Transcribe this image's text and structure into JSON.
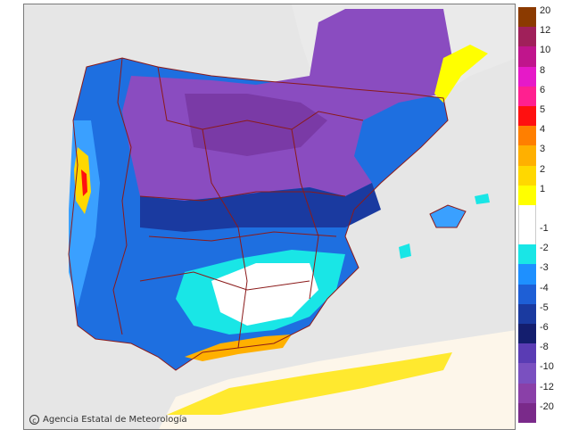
{
  "credit": {
    "icon": "copyright-icon",
    "text": "Agencia Estatal de Meteorología"
  },
  "map": {
    "colors": {
      "sea": "#e6e6e6",
      "land_outside": "#e9e9e9",
      "border": "#8b1a1a"
    }
  },
  "legend": {
    "entries": [
      {
        "label": "20",
        "color": "#8b3a00"
      },
      {
        "label": "12",
        "color": "#a0205a"
      },
      {
        "label": "10",
        "color": "#c0158c"
      },
      {
        "label": "8",
        "color": "#e619c8"
      },
      {
        "label": "6",
        "color": "#ff2090"
      },
      {
        "label": "5",
        "color": "#ff1010"
      },
      {
        "label": "4",
        "color": "#ff7f00"
      },
      {
        "label": "3",
        "color": "#ffb000"
      },
      {
        "label": "2",
        "color": "#ffd800"
      },
      {
        "label": "1",
        "color": "#ffff00"
      },
      {
        "label": "",
        "color": "#ffffff"
      },
      {
        "label": "-1",
        "color": "#ffffff"
      },
      {
        "label": "-2",
        "color": "#19e6e6"
      },
      {
        "label": "-3",
        "color": "#1e90ff"
      },
      {
        "label": "-4",
        "color": "#1e5fd6"
      },
      {
        "label": "-5",
        "color": "#1a3aa0"
      },
      {
        "label": "-6",
        "color": "#141e6e"
      },
      {
        "label": "-8",
        "color": "#5a3cb4"
      },
      {
        "label": "-10",
        "color": "#7a50c0"
      },
      {
        "label": "-12",
        "color": "#8a40a8"
      },
      {
        "label": "-20",
        "color": "#7a2a8a"
      }
    ]
  }
}
